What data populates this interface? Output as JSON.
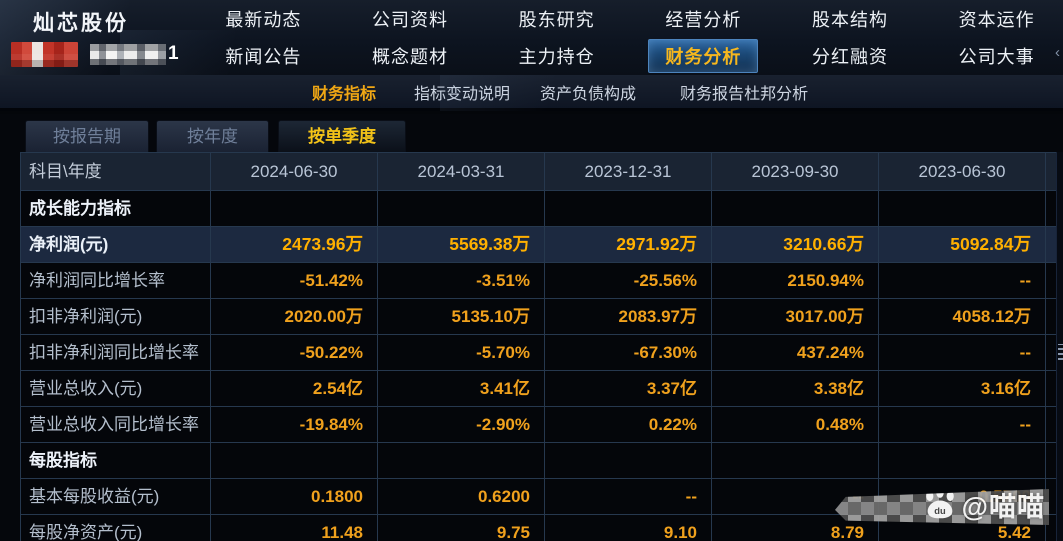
{
  "header": {
    "stock_name": "灿芯股份",
    "stock_code_visible": "1",
    "nav_row1": [
      "最新动态",
      "公司资料",
      "股东研究",
      "经营分析",
      "股本结构",
      "资本运作"
    ],
    "nav_row2": [
      "新闻公告",
      "概念题材",
      "主力持仓",
      "财务分析",
      "分红融资",
      "公司大事"
    ],
    "active_nav": "财务分析"
  },
  "subnav": {
    "items": [
      "财务指标",
      "指标变动说明",
      "资产负债构成",
      "财务报告",
      "杜邦分析"
    ],
    "active": "财务指标"
  },
  "tabs": {
    "items": [
      "按报告期",
      "按年度",
      "按单季度"
    ],
    "active": "按单季度"
  },
  "table": {
    "corner_label": "科目\\年度",
    "columns": [
      "2024-06-30",
      "2024-03-31",
      "2023-12-31",
      "2023-09-30",
      "2023-06-30"
    ],
    "rows": [
      {
        "label": "成长能力指标",
        "type": "section",
        "values": [
          "",
          "",
          "",
          "",
          ""
        ]
      },
      {
        "label": "净利润(元)",
        "type": "highlight",
        "values": [
          "2473.96万",
          "5569.38万",
          "2971.92万",
          "3210.66万",
          "5092.84万"
        ]
      },
      {
        "label": "净利润同比增长率",
        "type": "data",
        "values": [
          "-51.42%",
          "-3.51%",
          "-25.56%",
          "2150.94%",
          "--"
        ]
      },
      {
        "label": "扣非净利润(元)",
        "type": "data",
        "values": [
          "2020.00万",
          "5135.10万",
          "2083.97万",
          "3017.00万",
          "4058.12万"
        ]
      },
      {
        "label": "扣非净利润同比增长率",
        "type": "data",
        "values": [
          "-50.22%",
          "-5.70%",
          "-67.30%",
          "437.24%",
          "--"
        ]
      },
      {
        "label": "营业总收入(元)",
        "type": "data",
        "values": [
          "2.54亿",
          "3.41亿",
          "3.37亿",
          "3.38亿",
          "3.16亿"
        ]
      },
      {
        "label": "营业总收入同比增长率",
        "type": "data",
        "values": [
          "-19.84%",
          "-2.90%",
          "0.22%",
          "0.48%",
          "--"
        ]
      },
      {
        "label": "每股指标",
        "type": "section",
        "values": [
          "",
          "",
          "",
          "",
          ""
        ]
      },
      {
        "label": "基本每股收益(元)",
        "type": "data",
        "values": [
          "0.1800",
          "0.6200",
          "--",
          "--",
          "0.5700"
        ]
      },
      {
        "label": "每股净资产(元)",
        "type": "data",
        "values": [
          "11.48",
          "9.75",
          "9.10",
          "8.79",
          "5.42"
        ]
      }
    ]
  },
  "watermark": {
    "text": "@喵喵",
    "icon": "paw-icon"
  },
  "colors": {
    "value_orange": "#f0a11d",
    "highlight_value_orange": "#ffb000",
    "active_tab_yellow": "#f3c318",
    "active_nav_yellow": "#f6b71e",
    "nav_active_bg": "#1b4876",
    "highlight_row_bg": "#1c2940",
    "table_border": "#26384e",
    "header_row_bg": "#1a2433"
  }
}
